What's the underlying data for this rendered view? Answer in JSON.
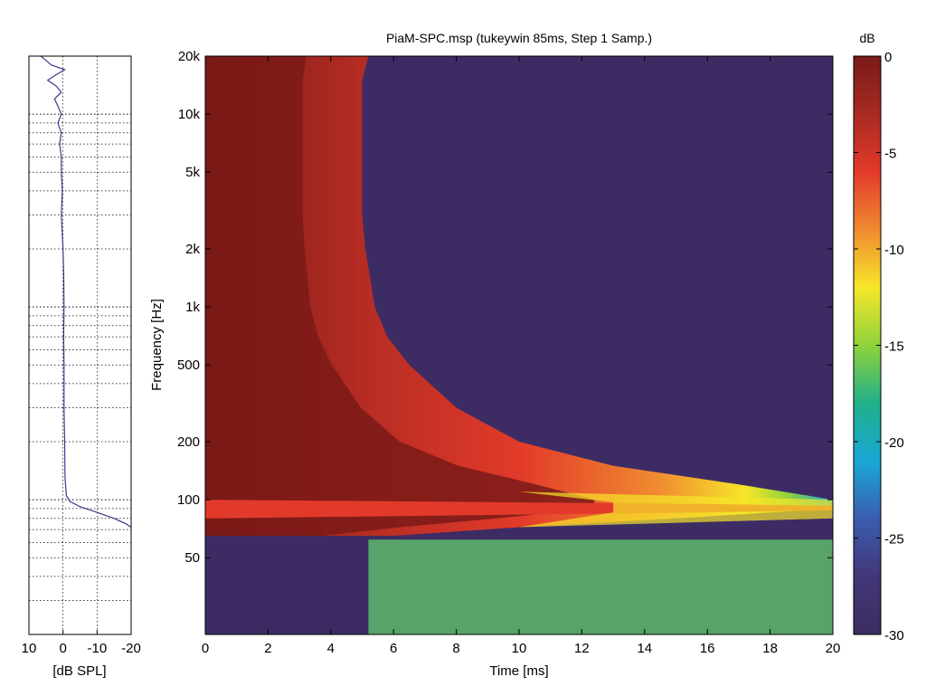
{
  "chart_data": [
    {
      "type": "line",
      "xlabel": "[dB SPL]",
      "ylabel": "",
      "title": "",
      "xlim": [
        10,
        -20
      ],
      "x_ticks": [
        "10",
        "0",
        "-10",
        "-20"
      ],
      "x_tick_values": [
        10,
        0,
        -10,
        -20
      ],
      "yscale": "log",
      "ylim": [
        20,
        20000
      ],
      "grid": true,
      "series": [
        {
          "color": "#3a3a8c",
          "points": [
            [
              20000,
              6.5
            ],
            [
              19000,
              5.0
            ],
            [
              18000,
              3.5
            ],
            [
              17000,
              -0.5
            ],
            [
              16000,
              2.0
            ],
            [
              15000,
              4.5
            ],
            [
              14000,
              2.0
            ],
            [
              13000,
              0.5
            ],
            [
              12000,
              2.5
            ],
            [
              11000,
              1.5
            ],
            [
              10000,
              0.5
            ],
            [
              9000,
              1.5
            ],
            [
              8000,
              0.5
            ],
            [
              7000,
              1.0
            ],
            [
              6000,
              0.5
            ],
            [
              5000,
              0.5
            ],
            [
              4000,
              0.2
            ],
            [
              3000,
              0.5
            ],
            [
              2000,
              0.0
            ],
            [
              1500,
              -0.2
            ],
            [
              1000,
              -0.3
            ],
            [
              700,
              -0.2
            ],
            [
              500,
              -0.3
            ],
            [
              300,
              -0.3
            ],
            [
              200,
              -0.5
            ],
            [
              130,
              -0.6
            ],
            [
              105,
              -1.0
            ],
            [
              98,
              -2.0
            ],
            [
              92,
              -5.0
            ],
            [
              86,
              -10.0
            ],
            [
              80,
              -15.0
            ],
            [
              75,
              -18.5
            ],
            [
              70,
              -21.0
            ]
          ]
        }
      ]
    },
    {
      "type": "heatmap",
      "title": "PiaM-SPC.msp (tukeywin 85ms, Step 1 Samp.)",
      "xlabel": "Time [ms]",
      "ylabel": "Frequency [Hz]",
      "xlim": [
        0,
        20
      ],
      "ylim": [
        20,
        20000
      ],
      "yscale": "log",
      "x_ticks": [
        "0",
        "2",
        "4",
        "6",
        "8",
        "10",
        "12",
        "14",
        "16",
        "18",
        "20"
      ],
      "x_tick_values": [
        0,
        2,
        4,
        6,
        8,
        10,
        12,
        14,
        16,
        18,
        20
      ],
      "y_ticks": [
        "20k",
        "10k",
        "5k",
        "2k",
        "1k",
        "500",
        "200",
        "100",
        "50"
      ],
      "y_tick_values": [
        20000,
        10000,
        5000,
        2000,
        1000,
        500,
        200,
        100,
        50
      ],
      "decay_front_ms": [
        [
          20000,
          5.2
        ],
        [
          15000,
          5.0
        ],
        [
          10000,
          5.0
        ],
        [
          5000,
          5.0
        ],
        [
          3000,
          5.0
        ],
        [
          2000,
          5.1
        ],
        [
          1000,
          5.4
        ],
        [
          700,
          5.8
        ],
        [
          500,
          6.5
        ],
        [
          300,
          8.0
        ],
        [
          200,
          10.0
        ],
        [
          150,
          13.0
        ],
        [
          120,
          17.0
        ],
        [
          100,
          20.0
        ],
        [
          90,
          20.0
        ],
        [
          80,
          15.0
        ],
        [
          72,
          10.0
        ],
        [
          65,
          6.0
        ]
      ],
      "colorbar": {
        "label": "dB",
        "range": [
          -30,
          0
        ],
        "ticks": [
          "0",
          "-5",
          "-10",
          "-15",
          "-20",
          "-25",
          "-30"
        ],
        "tick_values": [
          0,
          -5,
          -10,
          -15,
          -20,
          -25,
          -30
        ],
        "colors": [
          "#7a1a18",
          "#a82a22",
          "#e23a2a",
          "#f08a30",
          "#f7e62a",
          "#8fd23a",
          "#21b08a",
          "#1aa7d6",
          "#3b5cb0",
          "#433678",
          "#3b2d60"
        ]
      }
    }
  ]
}
